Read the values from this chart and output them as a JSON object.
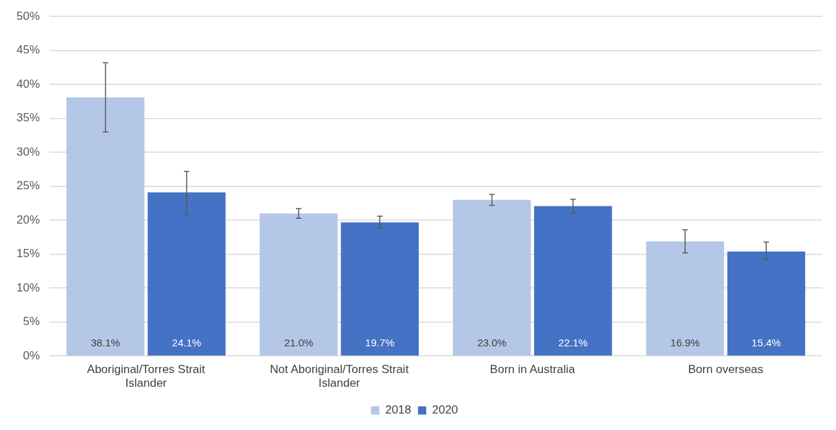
{
  "chart_data": {
    "type": "bar",
    "categories": [
      "Aboriginal/Torres Strait Islander",
      "Not Aboriginal/Torres Strait Islander",
      "Born in Australia",
      "Born overseas"
    ],
    "series": [
      {
        "name": "2018",
        "color": "#b4c7e7",
        "values": [
          38.1,
          21.0,
          23.0,
          16.9
        ],
        "value_labels": [
          "38.1%",
          "21.0%",
          "23.0%",
          "16.9%"
        ],
        "errors": [
          [
            33.0,
            43.2
          ],
          [
            20.3,
            21.7
          ],
          [
            22.2,
            23.8
          ],
          [
            15.2,
            18.6
          ]
        ]
      },
      {
        "name": "2020",
        "color": "#4472c4",
        "values": [
          24.1,
          19.7,
          22.1,
          15.4
        ],
        "value_labels": [
          "24.1%",
          "19.7%",
          "22.1%",
          "15.4%"
        ],
        "errors": [
          [
            20.8,
            27.2
          ],
          [
            18.9,
            20.6
          ],
          [
            21.1,
            23.1
          ],
          [
            14.2,
            16.8
          ]
        ]
      }
    ],
    "ylim": [
      0,
      50
    ],
    "yticks": [
      {
        "value": 0,
        "label": "0%"
      },
      {
        "value": 5,
        "label": "5%"
      },
      {
        "value": 10,
        "label": "10%"
      },
      {
        "value": 15,
        "label": "15%"
      },
      {
        "value": 20,
        "label": "20%"
      },
      {
        "value": 25,
        "label": "25%"
      },
      {
        "value": 30,
        "label": "30%"
      },
      {
        "value": 35,
        "label": "35%"
      },
      {
        "value": 40,
        "label": "40%"
      },
      {
        "value": 45,
        "label": "45%"
      },
      {
        "value": 50,
        "label": "50%"
      }
    ],
    "grid": "y",
    "legend": "bottom"
  }
}
